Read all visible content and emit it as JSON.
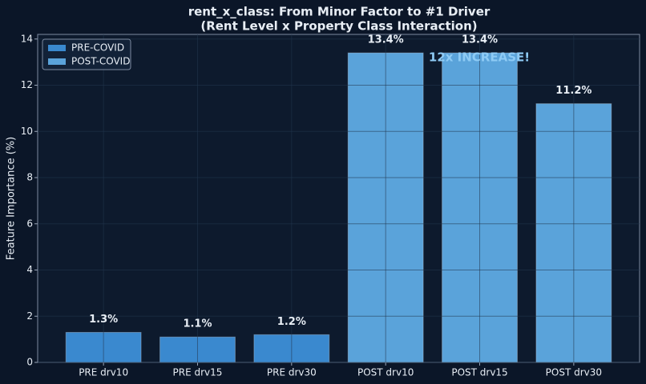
{
  "chart_data": {
    "type": "bar",
    "title": "rent_x_class: From Minor Factor to #1 Driver",
    "subtitle": "(Rent Level x Property Class Interaction)",
    "y_label": "Feature Importance (%)",
    "categories": [
      "PRE drv10",
      "PRE drv15",
      "PRE drv30",
      "POST drv10",
      "POST drv15",
      "POST drv30"
    ],
    "series": [
      {
        "name": "PRE-COVID",
        "color": "#3a89cf",
        "values": [
          1.3,
          1.1,
          1.2,
          null,
          null,
          null
        ],
        "value_labels": [
          "1.3%",
          "1.1%",
          "1.2%",
          null,
          null,
          null
        ]
      },
      {
        "name": "POST-COVID",
        "color": "#5aa3da",
        "values": [
          null,
          null,
          null,
          13.4,
          13.4,
          11.2
        ],
        "value_labels": [
          null,
          null,
          null,
          "13.4%",
          "13.4%",
          "11.2%"
        ]
      }
    ],
    "annotation": "12x INCREASE!",
    "ylim": [
      0,
      14.2
    ],
    "yticks": [
      0,
      2,
      4,
      6,
      8,
      10,
      12,
      14
    ],
    "grid": true,
    "legend": "upper left"
  }
}
